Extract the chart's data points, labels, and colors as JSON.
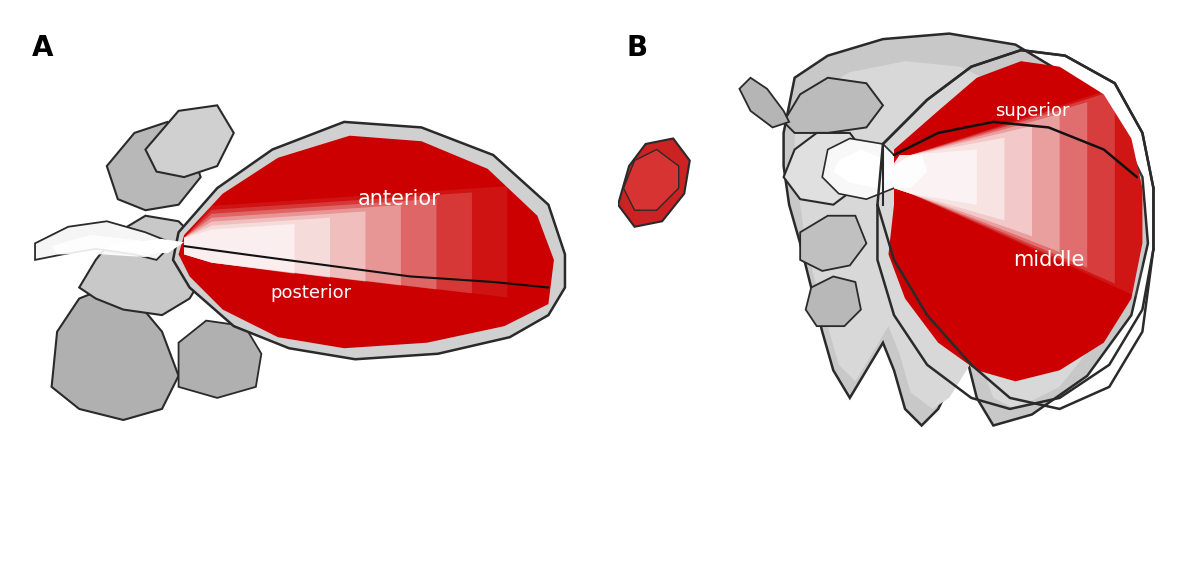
{
  "background_color": "#ffffff",
  "label_A": "A",
  "label_B": "B",
  "label_fontsize": 20,
  "label_color": "#000000",
  "text_anterior": "anterior",
  "text_posterior": "posterior",
  "text_superior": "superior",
  "text_middle": "middle",
  "text_color": "#ffffff",
  "text_fontsize_lg": 15,
  "text_fontsize_sm": 13,
  "red_dark": "#cc0000",
  "gray_bone": "#b0b0b0",
  "gray_light": "#d0d0d0",
  "gray_outline": "#2a2a2a",
  "fig_width": 12.0,
  "fig_height": 5.75
}
